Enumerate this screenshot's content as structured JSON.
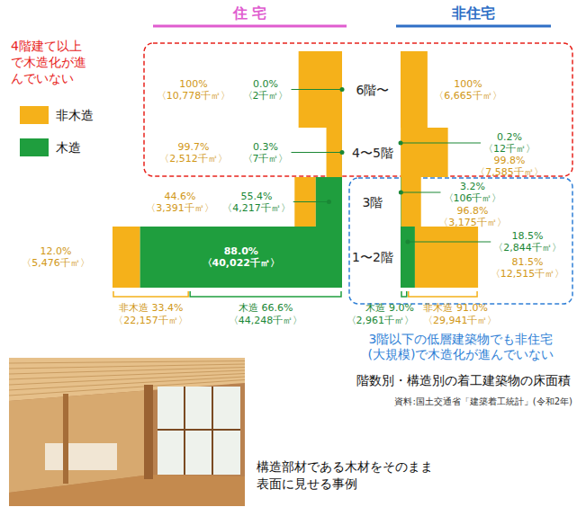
{
  "chart_data": {
    "type": "mekko",
    "title": "階数別・構造別の着工建築物の床面積",
    "source": "資料:国土交通省「建築着工統計」(令和2年)",
    "legend": "left",
    "data_labels": true,
    "floors": [
      "6階〜",
      "4〜5階",
      "3階",
      "1〜2階"
    ],
    "series": [
      {
        "name": "非木造",
        "color": "#f5b11a"
      },
      {
        "name": "木造",
        "color": "#1f9e3e"
      }
    ],
    "panels": [
      {
        "title": "住 宅",
        "color": "#e05ccf",
        "rows": [
          [
            {
              "share": 100,
              "share_label": "100%",
              "area": 10778,
              "area_label": "〈10,778千㎡〉"
            },
            {
              "share": 0.0,
              "share_label": "0.0%",
              "area": 2,
              "area_label": "〈2千㎡〉"
            }
          ],
          [
            {
              "share": 99.7,
              "share_label": "99.7%",
              "area": 2512,
              "area_label": "〈2,512千㎡〉"
            },
            {
              "share": 0.3,
              "share_label": "0.3%",
              "area": 7,
              "area_label": "〈7千㎡〉"
            }
          ],
          [
            {
              "share": 44.6,
              "share_label": "44.6%",
              "area": 3391,
              "area_label": "〈3,391千㎡〉"
            },
            {
              "share": 55.4,
              "share_label": "55.4%",
              "area": 4217,
              "area_label": "〈4,217千㎡〉"
            }
          ],
          [
            {
              "share": 12.0,
              "share_label": "12.0%",
              "area": 5476,
              "area_label": "〈5,476千㎡〉"
            },
            {
              "share": 88.0,
              "share_label": "88.0%",
              "area": 40022,
              "area_label": "〈40,022千㎡〉"
            }
          ]
        ],
        "totals": [
          {
            "share": 33.4,
            "share_label": "33.4%",
            "area": 22157,
            "area_label": "〈22,157千㎡〉"
          },
          {
            "share": 66.6,
            "share_label": "66.6%",
            "area": 44248,
            "area_label": "〈44,248千㎡〉"
          }
        ]
      },
      {
        "title": "非住宅",
        "color": "#2f6fc6",
        "rows": [
          [
            {
              "share": 100,
              "share_label": "100%",
              "area": 6665,
              "area_label": "〈6,665千㎡〉"
            },
            null
          ],
          [
            {
              "share": 99.8,
              "share_label": "99.8%",
              "area": 7585,
              "area_label": "〈7,585千㎡〉"
            },
            {
              "share": 0.2,
              "share_label": "0.2%",
              "area": 12,
              "area_label": "〈12千㎡〉"
            }
          ],
          [
            {
              "share": 96.8,
              "share_label": "96.8%",
              "area": 3175,
              "area_label": "〈3,175千㎡〉"
            },
            {
              "share": 3.2,
              "share_label": "3.2%",
              "area": 106,
              "area_label": "〈106千㎡〉"
            }
          ],
          [
            {
              "share": 81.5,
              "share_label": "81.5%",
              "area": 12515,
              "area_label": "〈12,515千㎡〉"
            },
            {
              "share": 18.5,
              "share_label": "18.5%",
              "area": 2844,
              "area_label": "〈2,844千㎡〉"
            }
          ]
        ],
        "totals": [
          {
            "share": 91.0,
            "share_label": "91.0%",
            "area": 29941,
            "area_label": "〈29,941千㎡〉"
          },
          {
            "share": 9.0,
            "share_label": "9.0%",
            "area": 2961,
            "area_label": "〈2,961千㎡〉"
          }
        ]
      }
    ],
    "annotations": [
      {
        "lines": [
          "4階建て以上",
          "で木造化が進",
          "んでいない"
        ],
        "color": "#e8231c"
      },
      {
        "lines": [
          "3階以下の低層建築物でも非住宅",
          "(大規模)で木造化が進んでいない"
        ],
        "color": "#2f7fd6"
      }
    ],
    "caption": [
      "構造部材である木材をそのまま",
      "表面に見せる事例"
    ]
  }
}
